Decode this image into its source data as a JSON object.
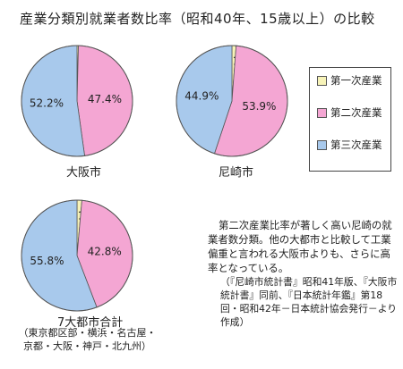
{
  "title": "産業分類別就業者数比率（昭和40年、15歳以上）の比較",
  "chart_data": [
    {
      "type": "pie",
      "title": "大阪市",
      "series": [
        {
          "name": "第一次産業",
          "value": 0.4
        },
        {
          "name": "第二次産業",
          "value": 47.4
        },
        {
          "name": "第三次産業",
          "value": 52.2
        }
      ],
      "value_labels": [
        "0.4%",
        "47.4%",
        "52.2%"
      ]
    },
    {
      "type": "pie",
      "title": "尼崎市",
      "series": [
        {
          "name": "第一次産業",
          "value": 1.2
        },
        {
          "name": "第二次産業",
          "value": 53.9
        },
        {
          "name": "第三次産業",
          "value": 44.9
        }
      ],
      "value_labels": [
        "1.2%",
        "53.9%",
        "44.9%"
      ]
    },
    {
      "type": "pie",
      "title": "7大都市合計",
      "subtitle": [
        "（東京都区部・横浜・名古屋・",
        "京都・大阪・神戸・北九州）"
      ],
      "series": [
        {
          "name": "第一次産業",
          "value": 1.4
        },
        {
          "name": "第二次産業",
          "value": 42.8
        },
        {
          "name": "第三次産業",
          "value": 55.8
        }
      ],
      "value_labels": [
        "1.4%",
        "42.8%",
        "55.8%"
      ]
    }
  ],
  "legend": [
    {
      "label": "第一次産業",
      "color": "#f7f3b8"
    },
    {
      "label": "第二次産業",
      "color": "#f4a6d3"
    },
    {
      "label": "第三次産業",
      "color": "#a8c9ec"
    }
  ],
  "colors": {
    "primary": "#f7f3b8",
    "secondary": "#f4a6d3",
    "tertiary": "#a8c9ec",
    "outline": "#555555"
  },
  "note": "第二次産業比率が著しく高い尼崎の就業者数分類。他の大都市と比較して工業偏重と言われる大阪市よりも、さらに高率となっている。",
  "source": "（『尼崎市統計書』昭和41年版、『大阪市統計書』同前、『日本統計年鑑』第18回・昭和42年－日本統計協会発行－より作成）"
}
